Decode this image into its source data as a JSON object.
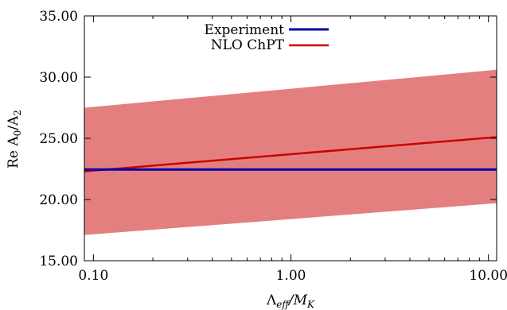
{
  "chart_data": {
    "type": "line",
    "title": "",
    "xlabel_parts": [
      "Λ",
      "eff",
      "/M",
      "K"
    ],
    "ylabel_parts": [
      "Re A",
      "0",
      "/A",
      "2"
    ],
    "xscale": "log",
    "xlim": [
      0.09,
      11
    ],
    "ylim": [
      15,
      35
    ],
    "xticks": [
      0.1,
      1,
      10
    ],
    "xtick_labels": [
      "0.10",
      "1.00",
      "10.00"
    ],
    "yticks": [
      15,
      20,
      25,
      30,
      35
    ],
    "ytick_labels": [
      "15.00",
      "20.00",
      "25.00",
      "30.00",
      "35.00"
    ],
    "legend_position": "top-left",
    "series": [
      {
        "name": "Experiment",
        "color": "#0000aa",
        "x": [
          0.09,
          11
        ],
        "y": [
          22.45,
          22.45
        ]
      },
      {
        "name": "NLO ChPT",
        "color": "#cc0000",
        "x": [
          0.09,
          11
        ],
        "y": [
          22.3,
          25.1
        ],
        "band_lower": [
          17.1,
          19.7
        ],
        "band_upper": [
          27.5,
          30.6
        ],
        "band_color": "#e47f7f"
      }
    ]
  }
}
